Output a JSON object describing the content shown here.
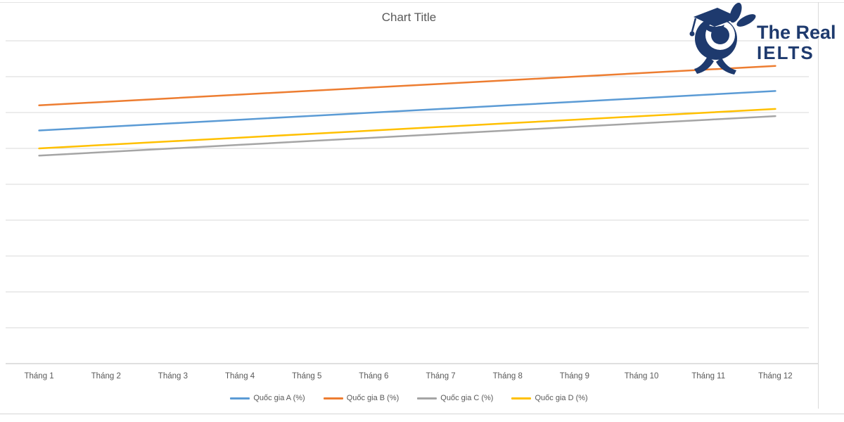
{
  "chart_data": {
    "type": "line",
    "title": "Chart Title",
    "categories": [
      "Tháng 1",
      "Tháng 2",
      "Tháng 3",
      "Tháng 4",
      "Tháng 5",
      "Tháng 6",
      "Tháng 7",
      "Tháng 8",
      "Tháng 9",
      "Tháng 10",
      "Tháng 11",
      "Tháng 12"
    ],
    "series": [
      {
        "name": "Quốc gia A (%)",
        "color": "#5B9BD5",
        "values": [
          65,
          66,
          67,
          68,
          69,
          70,
          71,
          72,
          73,
          74,
          75,
          76
        ]
      },
      {
        "name": "Quốc gia B (%)",
        "color": "#ED7D31",
        "values": [
          72,
          73,
          74,
          75,
          76,
          77,
          78,
          79,
          80,
          81,
          82,
          83
        ]
      },
      {
        "name": "Quốc gia C (%)",
        "color": "#A5A5A5",
        "values": [
          58,
          59,
          60,
          61,
          62,
          63,
          64,
          65,
          66,
          67,
          68,
          69
        ]
      },
      {
        "name": "Quốc gia D (%)",
        "color": "#FFC000",
        "values": [
          60,
          61,
          62,
          63,
          64,
          65,
          66,
          67,
          68,
          69,
          70,
          71
        ]
      }
    ],
    "xlabel": "",
    "ylabel": "",
    "ylim": [
      0,
      90
    ],
    "y_gridline_step": 10,
    "y_axis_labels_visible": false,
    "grid": true,
    "legend_position": "bottom",
    "gridline_color": "#d9d9d9",
    "axis_line_color": "#bfbfbf",
    "text_color": "#595959"
  },
  "logo": {
    "brand_line1": "The Real",
    "brand_line2": "IELTS",
    "color": "#1e3a6e"
  }
}
